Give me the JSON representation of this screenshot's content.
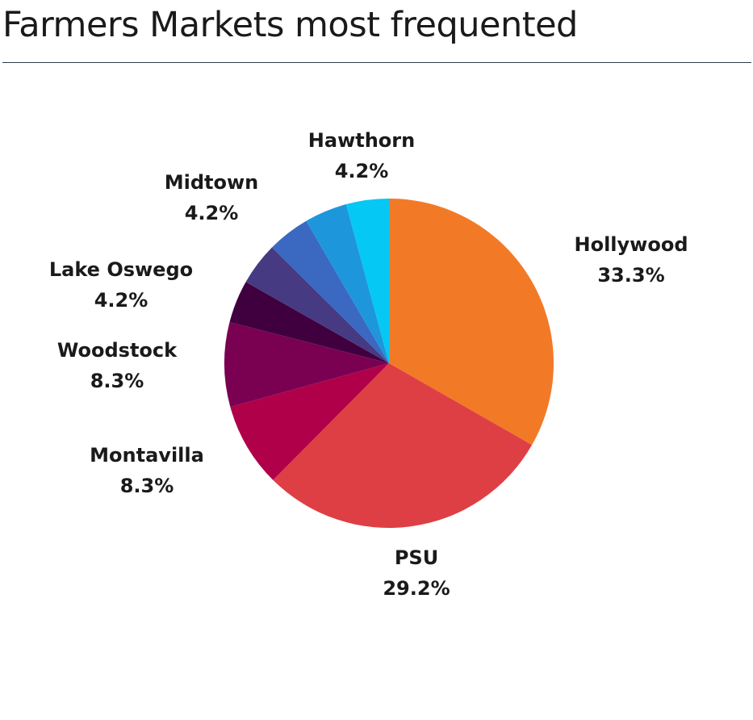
{
  "title": "Farmers Markets most frequented",
  "chart_data": {
    "type": "pie",
    "title": "Farmers Markets most frequented",
    "start_angle": "top",
    "direction": "clockwise",
    "slices": [
      {
        "name": "Hollywood",
        "value": 33.3,
        "label": "33.3%",
        "color": "#f27a27"
      },
      {
        "name": "PSU",
        "value": 29.2,
        "label": "29.2%",
        "color": "#de3f44"
      },
      {
        "name": "Montavilla",
        "value": 8.3,
        "label": "8.3%",
        "color": "#b00049"
      },
      {
        "name": "Woodstock",
        "value": 8.3,
        "label": "8.3%",
        "color": "#7a0152"
      },
      {
        "name": "",
        "value": 4.2,
        "label": "",
        "color": "#40003f"
      },
      {
        "name": "Lake Oswego",
        "value": 4.2,
        "label": "4.2%",
        "color": "#463a82"
      },
      {
        "name": "Midtown",
        "value": 4.2,
        "label": "4.2%",
        "color": "#3b68c0"
      },
      {
        "name": "Hawthorn",
        "value": 4.2,
        "label": "4.2%",
        "color": "#1e96dc"
      },
      {
        "name": "",
        "value": 4.2,
        "label": "",
        "color": "#05c8f4"
      }
    ]
  }
}
